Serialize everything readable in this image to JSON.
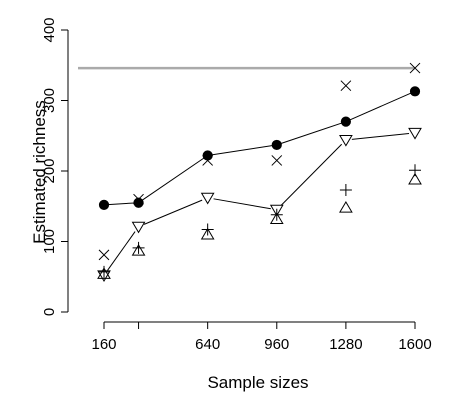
{
  "chart_data": {
    "type": "scatter",
    "title": "",
    "xlabel": "Sample sizes",
    "ylabel": "Estimated richness",
    "x_ticks": [
      160,
      320,
      640,
      960,
      1280,
      1600
    ],
    "x_tick_labels": [
      "160",
      "",
      "640",
      "960",
      "1280",
      "1600"
    ],
    "y_ticks": [
      0,
      100,
      200,
      300,
      400
    ],
    "y_tick_labels": [
      "0",
      "100",
      "200",
      "300",
      "400"
    ],
    "xlim": [
      100,
      1650
    ],
    "ylim": [
      0,
      400
    ],
    "grid": false,
    "legend": "none",
    "x": [
      160,
      320,
      640,
      960,
      1280,
      1600
    ],
    "series": [
      {
        "marker": "filled-circle",
        "connected": true,
        "color": "#000000",
        "values": [
          152,
          155,
          222,
          237,
          270,
          313
        ]
      },
      {
        "marker": "down-triangle",
        "connected": true,
        "color": "#000000",
        "values": [
          52,
          121,
          162,
          145,
          244,
          254
        ]
      },
      {
        "marker": "cross",
        "connected": false,
        "color": "#000000",
        "values": [
          81,
          160,
          215,
          215,
          321,
          346
        ]
      },
      {
        "marker": "plus",
        "connected": false,
        "color": "#000000",
        "values": [
          57,
          91,
          117,
          138,
          173,
          201
        ]
      },
      {
        "marker": "up-triangle",
        "connected": false,
        "color": "#000000",
        "values": [
          54,
          87,
          110,
          132,
          148,
          188
        ]
      }
    ],
    "reference_line": {
      "y": 346,
      "x_range": [
        100,
        1600
      ],
      "color": "#aaaaaa"
    }
  }
}
